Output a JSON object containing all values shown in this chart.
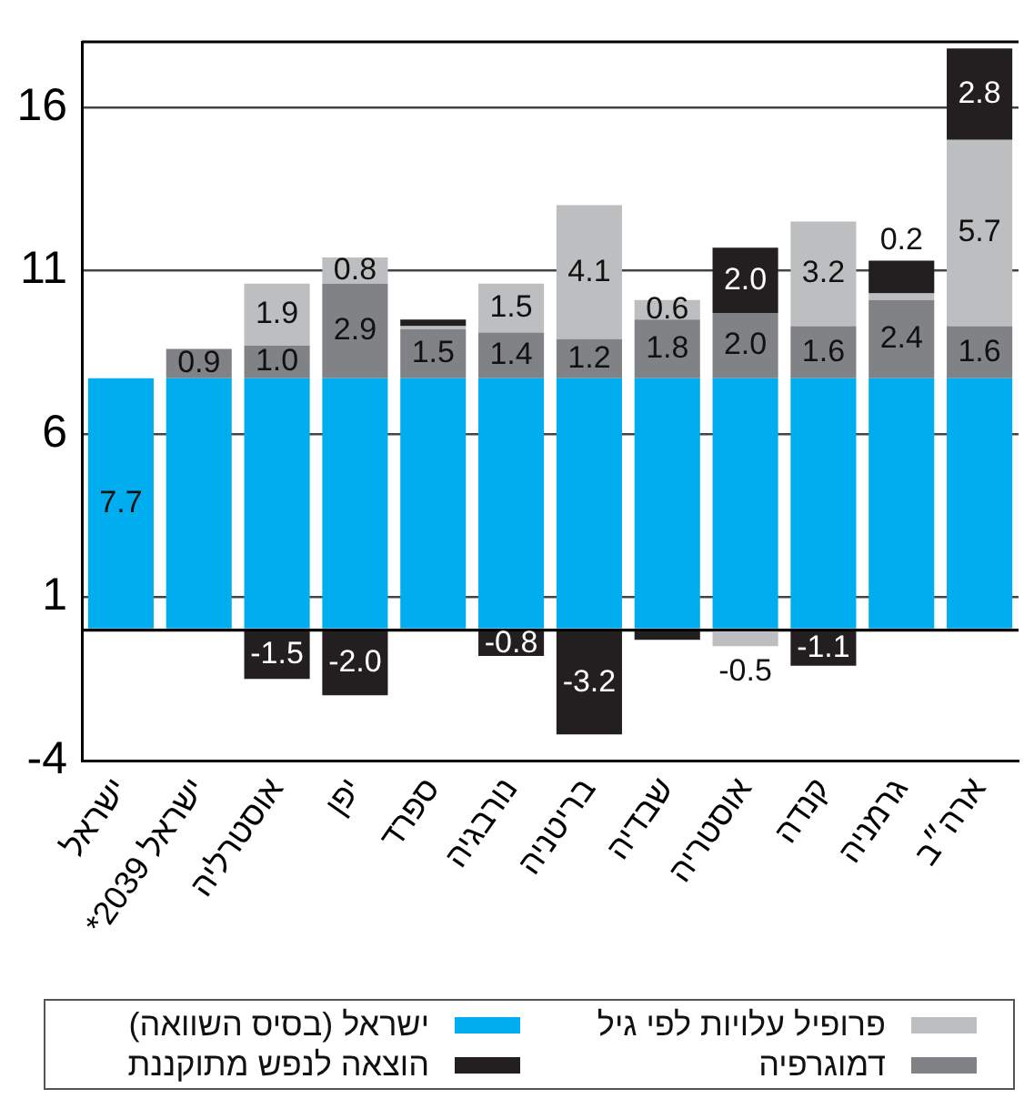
{
  "chart_data": {
    "type": "bar",
    "stacked": true,
    "categories": [
      "ישראל",
      "ישראל 2039*",
      "אוסטרליה",
      "יפן",
      "ספרד",
      "נורבגיה",
      "בריטניה",
      "שבדיה",
      "אוסטריה",
      "קנדה",
      "גרמניה",
      "ארה״ב"
    ],
    "series": [
      {
        "name": "ישראל (בסיס השוואה)",
        "color": "#00aeef",
        "values": [
          7.7,
          7.7,
          7.7,
          7.7,
          7.7,
          7.7,
          7.7,
          7.7,
          7.7,
          7.7,
          7.7,
          7.7
        ],
        "value_labels": [
          "7.7",
          null,
          null,
          null,
          null,
          null,
          null,
          null,
          null,
          null,
          null,
          null
        ]
      },
      {
        "name": "דמוגרפיה",
        "color": "#808285",
        "values": [
          null,
          0.9,
          1.0,
          2.9,
          1.5,
          1.4,
          1.2,
          1.8,
          2.0,
          1.6,
          2.4,
          1.6
        ],
        "value_labels": [
          null,
          "0.9",
          "1.0",
          "2.9",
          "1.5",
          "1.4",
          "1.2",
          "1.8",
          "2.0",
          "1.6",
          "2.4",
          "1.6"
        ]
      },
      {
        "name": "פרופיל עלויות לפי גיל",
        "color": "#bcbec0",
        "values": [
          null,
          null,
          1.9,
          0.8,
          0.1,
          1.5,
          4.1,
          0.6,
          -0.5,
          3.2,
          0.2,
          5.7
        ],
        "value_labels": [
          null,
          null,
          "1.9",
          "0.8",
          null,
          "1.5",
          "4.1",
          "0.6",
          "-0.5",
          "3.2",
          "0.2",
          "5.7"
        ]
      },
      {
        "name": "הוצאה לנפש מתוקננת",
        "color": "#231f20",
        "values": [
          null,
          null,
          -1.5,
          -2.0,
          0.2,
          -0.8,
          -3.2,
          -0.3,
          2.0,
          -1.1,
          1.0,
          2.8
        ],
        "value_labels": [
          null,
          null,
          "-1.5",
          "-2.0",
          null,
          "-0.8",
          "-3.2",
          null,
          "2.0",
          "-1.1",
          null,
          "2.8"
        ]
      }
    ],
    "ylim": [
      -4,
      18
    ],
    "yticks": [
      -4,
      {
        "value": 0,
        "label": null
      },
      1,
      6,
      11,
      16
    ],
    "grid": "y",
    "legend": "bottom"
  }
}
